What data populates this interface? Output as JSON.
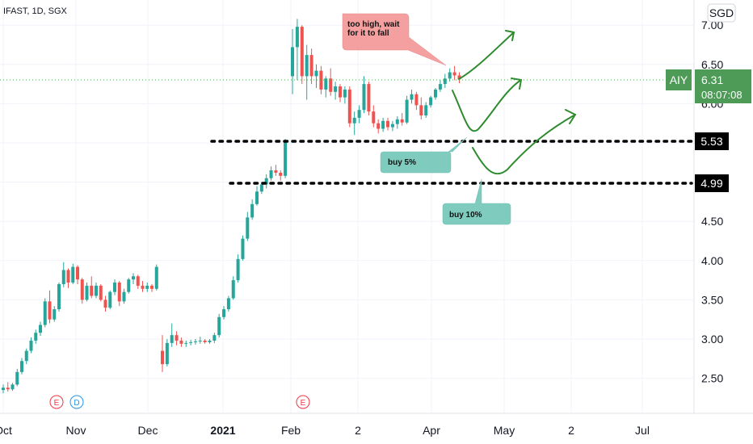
{
  "symbol": {
    "label": "IFAST, 1D, SGX"
  },
  "currency": "SGD",
  "price_tag": {
    "code": "AIY",
    "price": "6.31",
    "countdown": "08:07:08"
  },
  "level_tags": [
    {
      "name": "level-5-53",
      "text": "5.53",
      "value": 5.53
    },
    {
      "name": "level-4-99",
      "text": "4.99",
      "value": 4.99
    }
  ],
  "notes": {
    "too_high": [
      "too high, wait",
      "for it to fall"
    ],
    "buy5": "buy 5%",
    "buy10": "buy 10%"
  },
  "events": [
    {
      "name": "earnings-marker-oct",
      "label": "E",
      "color": "#f23645"
    },
    {
      "name": "dividend-marker-nov",
      "label": "D",
      "color": "#2196f3"
    },
    {
      "name": "earnings-marker-feb",
      "label": "E",
      "color": "#f23645"
    }
  ],
  "colors": {
    "up": "#26a69a",
    "down": "#ef5350",
    "arrow": "#2e8b2e",
    "tag": "#000000",
    "price_tag": "#4caf50"
  },
  "chart_data": {
    "type": "candlestick",
    "title": "",
    "y_ticks": [
      "2.50",
      "3.00",
      "3.50",
      "4.00",
      "4.50",
      "5.00",
      "5.50",
      "6.00",
      "6.50",
      "7.00"
    ],
    "x_ticks": [
      "Oct",
      "Nov",
      "Dec",
      "2021",
      "Feb",
      "2",
      "Apr",
      "May",
      "2",
      "Jul"
    ],
    "ylim": [
      2.0,
      7.3
    ],
    "grid": true,
    "support_levels": [
      5.53,
      4.99
    ],
    "last_price": 6.31,
    "ohlc": [
      [
        2.35,
        2.42,
        2.31,
        2.38
      ],
      [
        2.38,
        2.45,
        2.33,
        2.36
      ],
      [
        2.36,
        2.44,
        2.34,
        2.42
      ],
      [
        2.42,
        2.62,
        2.4,
        2.58
      ],
      [
        2.58,
        2.76,
        2.55,
        2.72
      ],
      [
        2.72,
        2.88,
        2.68,
        2.85
      ],
      [
        2.85,
        3.02,
        2.82,
        2.98
      ],
      [
        2.98,
        3.12,
        2.94,
        3.08
      ],
      [
        3.08,
        3.22,
        3.04,
        3.18
      ],
      [
        3.18,
        3.52,
        3.15,
        3.48
      ],
      [
        3.48,
        3.62,
        3.2,
        3.25
      ],
      [
        3.25,
        3.42,
        3.22,
        3.38
      ],
      [
        3.38,
        3.72,
        3.35,
        3.7
      ],
      [
        3.7,
        3.98,
        3.66,
        3.88
      ],
      [
        3.88,
        3.9,
        3.65,
        3.72
      ],
      [
        3.72,
        3.96,
        3.7,
        3.92
      ],
      [
        3.92,
        3.94,
        3.7,
        3.76
      ],
      [
        3.76,
        3.78,
        3.45,
        3.5
      ],
      [
        3.5,
        3.72,
        3.48,
        3.68
      ],
      [
        3.68,
        3.8,
        3.52,
        3.55
      ],
      [
        3.55,
        3.72,
        3.52,
        3.68
      ],
      [
        3.68,
        3.7,
        3.48,
        3.5
      ],
      [
        3.5,
        3.55,
        3.35,
        3.4
      ],
      [
        3.4,
        3.62,
        3.38,
        3.6
      ],
      [
        3.6,
        3.76,
        3.56,
        3.72
      ],
      [
        3.72,
        3.74,
        3.42,
        3.48
      ],
      [
        3.48,
        3.64,
        3.45,
        3.6
      ],
      [
        3.6,
        3.78,
        3.58,
        3.76
      ],
      [
        3.76,
        3.84,
        3.7,
        3.8
      ],
      [
        3.8,
        3.82,
        3.64,
        3.68
      ],
      [
        3.68,
        3.74,
        3.6,
        3.64
      ],
      [
        3.64,
        3.72,
        3.6,
        3.68
      ],
      [
        3.68,
        3.7,
        3.6,
        3.64
      ],
      [
        3.64,
        3.95,
        3.62,
        3.92
      ],
      [
        2.85,
        3.05,
        2.58,
        2.68
      ],
      [
        2.68,
        3.0,
        2.65,
        2.95
      ],
      [
        2.95,
        3.2,
        2.9,
        3.05
      ],
      [
        3.05,
        3.1,
        2.92,
        2.98
      ],
      [
        2.98,
        3.02,
        2.9,
        2.94
      ],
      [
        2.94,
        2.98,
        2.9,
        2.95
      ],
      [
        2.95,
        2.99,
        2.92,
        2.96
      ],
      [
        2.96,
        3.0,
        2.93,
        2.97
      ],
      [
        2.97,
        3.03,
        2.94,
        2.98
      ],
      [
        2.98,
        3.0,
        2.94,
        2.96
      ],
      [
        2.96,
        3.0,
        2.94,
        2.98
      ],
      [
        2.98,
        3.08,
        2.95,
        3.05
      ],
      [
        3.05,
        3.32,
        3.02,
        3.28
      ],
      [
        3.28,
        3.42,
        3.25,
        3.38
      ],
      [
        3.38,
        3.55,
        3.35,
        3.52
      ],
      [
        3.52,
        3.8,
        3.5,
        3.75
      ],
      [
        3.75,
        4.08,
        3.72,
        4.02
      ],
      [
        4.02,
        4.32,
        4.0,
        4.28
      ],
      [
        4.28,
        4.62,
        4.25,
        4.55
      ],
      [
        4.55,
        4.78,
        4.52,
        4.72
      ],
      [
        4.72,
        4.95,
        4.7,
        4.88
      ],
      [
        4.88,
        5.0,
        4.85,
        4.97
      ],
      [
        4.97,
        5.1,
        4.92,
        5.05
      ],
      [
        5.05,
        5.2,
        5.02,
        5.15
      ],
      [
        5.15,
        5.22,
        5.08,
        5.12
      ],
      [
        5.12,
        5.15,
        5.02,
        5.08
      ],
      [
        5.08,
        5.55,
        5.05,
        5.52
      ],
      [
        6.35,
        6.95,
        6.12,
        6.72
      ],
      [
        6.72,
        7.08,
        6.3,
        6.98
      ],
      [
        6.98,
        7.0,
        6.25,
        6.35
      ],
      [
        6.35,
        6.75,
        6.05,
        6.62
      ],
      [
        6.62,
        6.7,
        6.25,
        6.35
      ],
      [
        6.35,
        6.5,
        6.2,
        6.42
      ],
      [
        6.42,
        6.48,
        6.12,
        6.18
      ],
      [
        6.18,
        6.35,
        6.08,
        6.32
      ],
      [
        6.32,
        6.45,
        6.1,
        6.15
      ],
      [
        6.15,
        6.28,
        6.05,
        6.22
      ],
      [
        6.22,
        6.25,
        6.02,
        6.08
      ],
      [
        6.08,
        6.22,
        6.0,
        6.18
      ],
      [
        6.18,
        6.22,
        5.7,
        5.75
      ],
      [
        5.75,
        5.9,
        5.6,
        5.82
      ],
      [
        5.82,
        5.98,
        5.75,
        5.92
      ],
      [
        5.92,
        6.35,
        5.88,
        6.25
      ],
      [
        6.25,
        6.28,
        5.85,
        5.9
      ],
      [
        5.9,
        5.98,
        5.7,
        5.75
      ],
      [
        5.75,
        5.8,
        5.62,
        5.68
      ],
      [
        5.68,
        5.82,
        5.64,
        5.78
      ],
      [
        5.78,
        5.82,
        5.66,
        5.7
      ],
      [
        5.7,
        5.78,
        5.65,
        5.74
      ],
      [
        5.74,
        5.84,
        5.68,
        5.8
      ],
      [
        5.8,
        5.88,
        5.72,
        5.76
      ],
      [
        5.76,
        6.1,
        5.74,
        6.05
      ],
      [
        6.05,
        6.18,
        6.0,
        6.12
      ],
      [
        6.12,
        6.15,
        5.92,
        5.98
      ],
      [
        5.98,
        6.08,
        5.8,
        5.85
      ],
      [
        5.85,
        6.02,
        5.82,
        5.98
      ],
      [
        5.98,
        6.1,
        5.95,
        6.08
      ],
      [
        6.08,
        6.2,
        6.05,
        6.18
      ],
      [
        6.18,
        6.3,
        6.15,
        6.25
      ],
      [
        6.25,
        6.38,
        6.2,
        6.32
      ],
      [
        6.32,
        6.45,
        6.28,
        6.4
      ],
      [
        6.4,
        6.48,
        6.3,
        6.36
      ],
      [
        6.36,
        6.4,
        6.26,
        6.31
      ]
    ]
  }
}
